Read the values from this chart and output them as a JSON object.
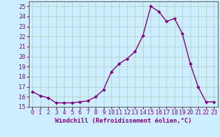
{
  "x": [
    0,
    1,
    2,
    3,
    4,
    5,
    6,
    7,
    8,
    9,
    10,
    11,
    12,
    13,
    14,
    15,
    16,
    17,
    18,
    19,
    20,
    21,
    22,
    23
  ],
  "y": [
    16.5,
    16.1,
    15.9,
    15.4,
    15.4,
    15.4,
    15.5,
    15.6,
    16.0,
    16.7,
    18.5,
    19.3,
    19.8,
    20.5,
    22.1,
    25.0,
    24.5,
    23.5,
    23.8,
    22.3,
    19.3,
    17.0,
    15.5,
    15.5
  ],
  "line_color": "#800080",
  "marker": "D",
  "marker_size": 2.2,
  "bg_color": "#cceeff",
  "grid_color": "#aaccbb",
  "xlabel": "Windchill (Refroidissement éolien,°C)",
  "xlim": [
    -0.5,
    23.5
  ],
  "ylim": [
    15,
    25.5
  ],
  "yticks": [
    15,
    16,
    17,
    18,
    19,
    20,
    21,
    22,
    23,
    24,
    25
  ],
  "xticks": [
    0,
    1,
    2,
    3,
    4,
    5,
    6,
    7,
    8,
    9,
    10,
    11,
    12,
    13,
    14,
    15,
    16,
    17,
    18,
    19,
    20,
    21,
    22,
    23
  ],
  "xlabel_fontsize": 6.5,
  "tick_fontsize": 6.0,
  "line_width": 1.0,
  "marker_color": "#800080",
  "label_color": "#800080"
}
